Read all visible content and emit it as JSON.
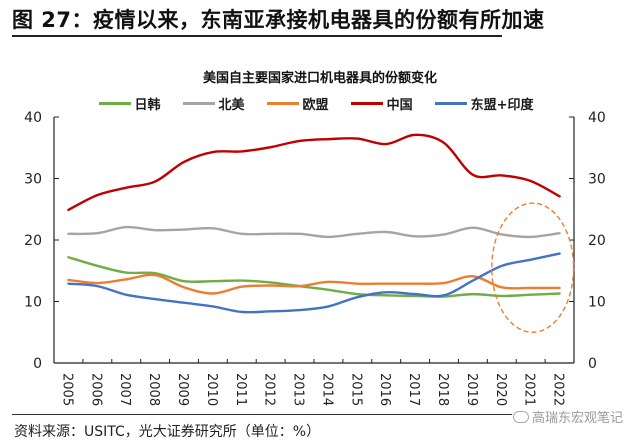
{
  "figure": {
    "title": "图 27：疫情以来，东南亚承接机电器具的份额有所加速",
    "source": "资料来源：USITC，光大证券研究所（单位：%）",
    "watermark": "高瑞东宏观笔记",
    "watermark_icon": "wechat-icon"
  },
  "chart_data": {
    "type": "line",
    "title": "美国自主要国家进口机电器具的份额变化",
    "xlabel": "",
    "ylabel": "",
    "ylim": [
      0,
      40
    ],
    "y_ticks": [
      0,
      10,
      20,
      30,
      40
    ],
    "y_tick_labels": [
      "0",
      "10",
      "20",
      "30",
      "40"
    ],
    "secondary_ylim": [
      0,
      40
    ],
    "grid": false,
    "legend_position": "top",
    "x": [
      "2005",
      "2006",
      "2007",
      "2008",
      "2009",
      "2010",
      "2011",
      "2012",
      "2013",
      "2014",
      "2015",
      "2016",
      "2017",
      "2018",
      "2019",
      "2020",
      "2021",
      "2022"
    ],
    "series": [
      {
        "name": "日韩",
        "color": "#70ad47",
        "values": [
          17.2,
          15.8,
          14.7,
          14.6,
          13.3,
          13.3,
          13.4,
          13.1,
          12.5,
          11.9,
          11.2,
          11.0,
          10.9,
          10.8,
          11.2,
          10.9,
          11.1,
          11.3
        ]
      },
      {
        "name": "北美",
        "color": "#a5a5a5",
        "values": [
          21.0,
          21.1,
          22.1,
          21.6,
          21.7,
          21.9,
          21.0,
          21.0,
          21.0,
          20.5,
          21.0,
          21.3,
          20.6,
          20.9,
          22.0,
          20.9,
          20.5,
          21.1
        ]
      },
      {
        "name": "欧盟",
        "color": "#ed7d31",
        "values": [
          13.5,
          13.0,
          13.6,
          14.3,
          12.3,
          11.3,
          12.4,
          12.6,
          12.5,
          13.2,
          12.9,
          12.9,
          12.9,
          13.0,
          14.1,
          12.3,
          12.2,
          12.2
        ]
      },
      {
        "name": "中国",
        "color": "#c00000",
        "values": [
          24.9,
          27.3,
          28.5,
          29.5,
          32.7,
          34.3,
          34.4,
          35.1,
          36.1,
          36.4,
          36.5,
          35.6,
          37.1,
          35.8,
          30.6,
          30.5,
          29.6,
          27.1
        ]
      },
      {
        "name": "东盟+印度",
        "color": "#4472c4",
        "values": [
          12.9,
          12.5,
          11.1,
          10.4,
          9.8,
          9.2,
          8.3,
          8.4,
          8.6,
          9.2,
          10.7,
          11.5,
          11.2,
          11.0,
          13.4,
          15.8,
          16.8,
          17.8
        ]
      }
    ],
    "annotation": {
      "type": "dashed-ellipse",
      "color": "#ed7d31",
      "x_range": [
        "2020",
        "2022"
      ],
      "y_range": [
        5,
        26
      ]
    }
  }
}
